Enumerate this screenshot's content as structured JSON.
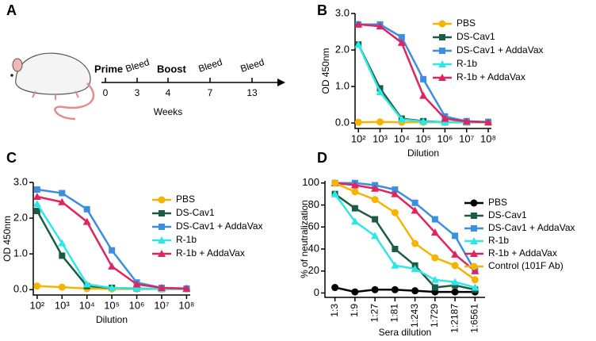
{
  "timeline": {
    "panel": "A",
    "events": [
      "Prime",
      "Bleed",
      "Boost",
      "Bleed",
      "Bleed"
    ],
    "ticks": [
      "0",
      "3",
      "4",
      "7",
      "13"
    ],
    "axis_label": "Weeks"
  },
  "chart_data": [
    {
      "type": "line",
      "panel": "B",
      "xlabel": "Dilution",
      "ylabel": "OD 450nm",
      "xlog": true,
      "x": [
        100,
        1000,
        10000,
        100000,
        1000000,
        10000000,
        100000000
      ],
      "xlim": [
        70,
        140000000
      ],
      "xticks": [
        {
          "value": 100,
          "label": "10²"
        },
        {
          "value": 1000,
          "label": "10³"
        },
        {
          "value": 10000,
          "label": "10⁴"
        },
        {
          "value": 100000,
          "label": "10⁵"
        },
        {
          "value": 1000000,
          "label": "10⁶"
        },
        {
          "value": 10000000,
          "label": "10⁷"
        },
        {
          "value": 100000000,
          "label": "10⁸"
        }
      ],
      "ylim": [
        -0.15,
        3.0
      ],
      "yticks": [
        {
          "value": 0,
          "label": "0.0"
        },
        {
          "value": 1,
          "label": "1.0"
        },
        {
          "value": 2,
          "label": "2.0"
        },
        {
          "value": 3,
          "label": "3.0"
        }
      ],
      "series": [
        {
          "name": "PBS",
          "color": "#f5b400",
          "marker": "circle",
          "values": [
            0.02,
            0.03,
            0.02,
            0.02,
            0.02,
            0.02,
            0.02
          ]
        },
        {
          "name": "DS-Cav1",
          "color": "#1a5c45",
          "marker": "square",
          "values": [
            2.15,
            0.95,
            0.12,
            0.05,
            0.02,
            0.02,
            0.02
          ]
        },
        {
          "name": "DS-Cav1 + AddaVax",
          "color": "#3b8fe0",
          "marker": "square",
          "values": [
            2.7,
            2.7,
            2.35,
            1.2,
            0.18,
            0.05,
            0.03
          ]
        },
        {
          "name": "R-1b",
          "color": "#2ee6e6",
          "marker": "triangle",
          "values": [
            2.15,
            0.85,
            0.1,
            0.04,
            0.02,
            0.02,
            0.02
          ]
        },
        {
          "name": "R-1b + AddaVax",
          "color": "#e0245e",
          "marker": "triangle",
          "values": [
            2.7,
            2.65,
            2.2,
            0.75,
            0.12,
            0.04,
            0.02
          ]
        }
      ]
    },
    {
      "type": "line",
      "panel": "C",
      "xlabel": "Dilution",
      "ylabel": "OD 450nm",
      "xlog": true,
      "x": [
        100,
        1000,
        10000,
        100000,
        1000000,
        10000000,
        100000000
      ],
      "xlim": [
        70,
        140000000
      ],
      "xticks": [
        {
          "value": 100,
          "label": "10²"
        },
        {
          "value": 1000,
          "label": "10³"
        },
        {
          "value": 10000,
          "label": "10⁴"
        },
        {
          "value": 100000,
          "label": "10⁵"
        },
        {
          "value": 1000000,
          "label": "10⁶"
        },
        {
          "value": 10000000,
          "label": "10⁷"
        },
        {
          "value": 100000000,
          "label": "10⁸"
        }
      ],
      "ylim": [
        -0.15,
        3.0
      ],
      "yticks": [
        {
          "value": 0,
          "label": "0.0"
        },
        {
          "value": 1,
          "label": "1.0"
        },
        {
          "value": 2,
          "label": "2.0"
        },
        {
          "value": 3,
          "label": "3.0"
        }
      ],
      "series": [
        {
          "name": "PBS",
          "color": "#f5b400",
          "marker": "circle",
          "values": [
            0.1,
            0.07,
            0.03,
            0.02,
            0.02,
            0.02,
            0.02
          ]
        },
        {
          "name": "DS-Cav1",
          "color": "#1a5c45",
          "marker": "square",
          "values": [
            2.2,
            0.95,
            0.1,
            0.05,
            0.03,
            0.02,
            0.02
          ]
        },
        {
          "name": "DS-Cav1 + AddaVax",
          "color": "#3b8fe0",
          "marker": "square",
          "values": [
            2.8,
            2.7,
            2.25,
            1.1,
            0.2,
            0.05,
            0.03
          ]
        },
        {
          "name": "R-1b",
          "color": "#2ee6e6",
          "marker": "triangle",
          "values": [
            2.4,
            1.3,
            0.15,
            0.05,
            0.03,
            0.02,
            0.02
          ]
        },
        {
          "name": "R-1b + AddaVax",
          "color": "#e0245e",
          "marker": "triangle",
          "values": [
            2.6,
            2.45,
            1.9,
            0.65,
            0.15,
            0.05,
            0.03
          ]
        }
      ]
    },
    {
      "type": "line",
      "panel": "D",
      "xlabel": "Sera dilution",
      "ylabel": "% of neutralization",
      "categories": [
        "1:3",
        "1:9",
        "1:27",
        "1:81",
        "1:243",
        "1:729",
        "1:2187",
        "1:6561"
      ],
      "ylim": [
        -4,
        102
      ],
      "yticks": [
        0,
        20,
        40,
        60,
        80,
        100
      ],
      "series": [
        {
          "name": "PBS",
          "color": "#000000",
          "marker": "circle",
          "values": [
            5,
            1,
            3,
            3,
            2,
            1,
            1,
            1
          ]
        },
        {
          "name": "DS-Cav1",
          "color": "#1a5c45",
          "marker": "square",
          "values": [
            90,
            77,
            67,
            40,
            25,
            5,
            7,
            3
          ]
        },
        {
          "name": "DS-Cav1 + AddaVax",
          "color": "#3b8fe0",
          "marker": "square",
          "values": [
            100,
            100,
            98,
            94,
            82,
            67,
            52,
            20
          ]
        },
        {
          "name": "R-1b",
          "color": "#2ee6e6",
          "marker": "triangle",
          "values": [
            90,
            65,
            52,
            25,
            22,
            12,
            10,
            5
          ]
        },
        {
          "name": "R-1b + AddaVax",
          "color": "#e0245e",
          "marker": "triangle",
          "values": [
            100,
            98,
            95,
            90,
            75,
            55,
            35,
            20
          ]
        },
        {
          "name": "Control (101F Ab)",
          "color": "#f5b400",
          "marker": "circle",
          "values": [
            100,
            92,
            85,
            73,
            45,
            32,
            25,
            12
          ]
        }
      ]
    }
  ]
}
